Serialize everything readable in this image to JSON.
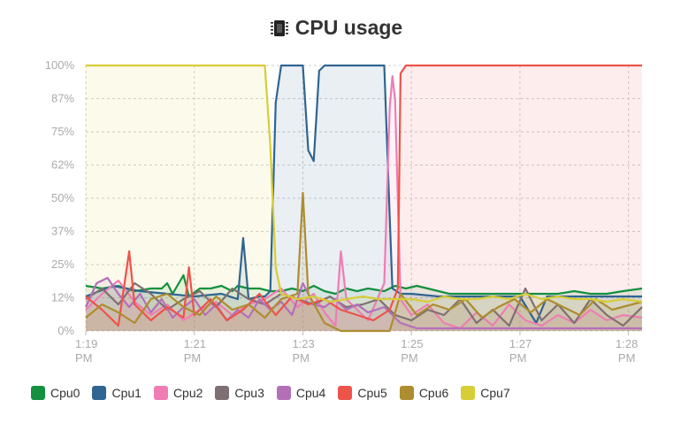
{
  "title": "CPU usage",
  "icon": "cpu-chip-icon",
  "chart_data": {
    "type": "area",
    "title": "CPU usage",
    "ylim": [
      0,
      100
    ],
    "yticks": [
      "0%",
      "12%",
      "25%",
      "37%",
      "50%",
      "62%",
      "75%",
      "87%",
      "100%"
    ],
    "xtick_labels": [
      [
        "1:19",
        "PM"
      ],
      [
        "1:21",
        "PM"
      ],
      [
        "1:23",
        "PM"
      ],
      [
        "1:25",
        "PM"
      ],
      [
        "1:27",
        "PM"
      ],
      [
        "1:28",
        "PM"
      ]
    ],
    "xticks_min": [
      0,
      2,
      4,
      6,
      8,
      10
    ],
    "xlim_min": [
      0,
      10.25
    ],
    "grid": true,
    "legend_position": "bottom",
    "series": [
      {
        "name": "Cpu0",
        "color": "#14903e",
        "points": [
          [
            0,
            17
          ],
          [
            0.3,
            16
          ],
          [
            0.6,
            17
          ],
          [
            0.9,
            15
          ],
          [
            1.2,
            16
          ],
          [
            1.4,
            16
          ],
          [
            1.5,
            18
          ],
          [
            1.6,
            14
          ],
          [
            1.8,
            21
          ],
          [
            1.9,
            13
          ],
          [
            2.1,
            16
          ],
          [
            2.3,
            16
          ],
          [
            2.5,
            17
          ],
          [
            2.7,
            15
          ],
          [
            2.8,
            17
          ],
          [
            3.0,
            16
          ],
          [
            3.2,
            16
          ],
          [
            3.4,
            15
          ],
          [
            3.6,
            15
          ],
          [
            3.8,
            16
          ],
          [
            4.0,
            15
          ],
          [
            4.2,
            17
          ],
          [
            4.4,
            15
          ],
          [
            4.6,
            14
          ],
          [
            4.8,
            16
          ],
          [
            5.0,
            15
          ],
          [
            5.2,
            16
          ],
          [
            5.5,
            15
          ],
          [
            5.7,
            17
          ],
          [
            5.9,
            16
          ],
          [
            6.1,
            17
          ],
          [
            6.3,
            16
          ],
          [
            6.5,
            15
          ],
          [
            6.7,
            14
          ],
          [
            6.9,
            14
          ],
          [
            7.2,
            14
          ],
          [
            7.5,
            14
          ],
          [
            7.8,
            14
          ],
          [
            8.1,
            14
          ],
          [
            8.4,
            14
          ],
          [
            8.7,
            14
          ],
          [
            9.0,
            15
          ],
          [
            9.3,
            14
          ],
          [
            9.6,
            14
          ],
          [
            9.9,
            15
          ],
          [
            10.25,
            16
          ]
        ]
      },
      {
        "name": "Cpu1",
        "color": "#2f6591",
        "points": [
          [
            0,
            13
          ],
          [
            0.5,
            17
          ],
          [
            1.0,
            15
          ],
          [
            1.5,
            14
          ],
          [
            2.0,
            13
          ],
          [
            2.5,
            14
          ],
          [
            2.8,
            12
          ],
          [
            2.9,
            35
          ],
          [
            3.0,
            12
          ],
          [
            3.2,
            13
          ],
          [
            3.3,
            13
          ],
          [
            3.4,
            15
          ],
          [
            3.5,
            86
          ],
          [
            3.6,
            100
          ],
          [
            4.0,
            100
          ],
          [
            4.1,
            68
          ],
          [
            4.2,
            64
          ],
          [
            4.3,
            98
          ],
          [
            4.4,
            100
          ],
          [
            5.5,
            100
          ],
          [
            5.6,
            43
          ],
          [
            5.65,
            16
          ],
          [
            5.8,
            14
          ],
          [
            6.0,
            14
          ],
          [
            6.5,
            13
          ],
          [
            7.0,
            13
          ],
          [
            7.5,
            13
          ],
          [
            8.0,
            13
          ],
          [
            8.3,
            3
          ],
          [
            8.5,
            13
          ],
          [
            9.0,
            13
          ],
          [
            9.5,
            13
          ],
          [
            10.25,
            13
          ]
        ]
      },
      {
        "name": "Cpu2",
        "color": "#ee7db3",
        "points": [
          [
            0,
            8
          ],
          [
            0.3,
            14
          ],
          [
            0.6,
            19
          ],
          [
            0.9,
            11
          ],
          [
            1.2,
            6
          ],
          [
            1.5,
            10
          ],
          [
            1.8,
            4
          ],
          [
            2.1,
            8
          ],
          [
            2.4,
            11
          ],
          [
            2.7,
            6
          ],
          [
            3.0,
            10
          ],
          [
            3.3,
            12
          ],
          [
            3.6,
            16
          ],
          [
            3.9,
            9
          ],
          [
            4.2,
            14
          ],
          [
            4.4,
            7
          ],
          [
            4.6,
            2
          ],
          [
            4.7,
            30
          ],
          [
            4.8,
            12
          ],
          [
            5.2,
            4
          ],
          [
            5.5,
            18
          ],
          [
            5.6,
            84
          ],
          [
            5.65,
            96
          ],
          [
            5.7,
            87
          ],
          [
            5.8,
            12
          ],
          [
            6.0,
            6
          ],
          [
            6.3,
            10
          ],
          [
            6.6,
            3
          ],
          [
            6.9,
            1
          ],
          [
            7.2,
            7
          ],
          [
            7.5,
            2
          ],
          [
            7.8,
            10
          ],
          [
            8.1,
            4
          ],
          [
            8.4,
            2
          ],
          [
            8.7,
            6
          ],
          [
            9.0,
            3
          ],
          [
            9.3,
            8
          ],
          [
            9.6,
            4
          ],
          [
            9.9,
            6
          ],
          [
            10.25,
            5
          ]
        ]
      },
      {
        "name": "Cpu3",
        "color": "#7e7072",
        "points": [
          [
            0,
            12
          ],
          [
            0.3,
            16
          ],
          [
            0.6,
            10
          ],
          [
            0.9,
            18
          ],
          [
            1.2,
            14
          ],
          [
            1.5,
            8
          ],
          [
            1.8,
            12
          ],
          [
            2.1,
            15
          ],
          [
            2.4,
            9
          ],
          [
            2.7,
            16
          ],
          [
            3.0,
            12
          ],
          [
            3.3,
            10
          ],
          [
            3.6,
            14
          ],
          [
            3.9,
            12
          ],
          [
            4.2,
            10
          ],
          [
            4.5,
            13
          ],
          [
            4.8,
            9
          ],
          [
            5.1,
            10
          ],
          [
            5.4,
            12
          ],
          [
            5.7,
            6
          ],
          [
            6.0,
            4
          ],
          [
            6.3,
            8
          ],
          [
            6.6,
            6
          ],
          [
            6.9,
            12
          ],
          [
            7.2,
            3
          ],
          [
            7.5,
            8
          ],
          [
            7.8,
            2
          ],
          [
            8.1,
            16
          ],
          [
            8.4,
            4
          ],
          [
            8.7,
            10
          ],
          [
            9.0,
            3
          ],
          [
            9.3,
            12
          ],
          [
            9.6,
            6
          ],
          [
            9.9,
            2
          ],
          [
            10.25,
            9
          ]
        ]
      },
      {
        "name": "Cpu4",
        "color": "#b46fb9",
        "points": [
          [
            0,
            9
          ],
          [
            0.2,
            18
          ],
          [
            0.4,
            20
          ],
          [
            0.6,
            14
          ],
          [
            0.8,
            9
          ],
          [
            1.0,
            14
          ],
          [
            1.2,
            7
          ],
          [
            1.4,
            12
          ],
          [
            1.6,
            5
          ],
          [
            1.8,
            9
          ],
          [
            2.0,
            12
          ],
          [
            2.2,
            6
          ],
          [
            2.4,
            10
          ],
          [
            2.6,
            4
          ],
          [
            2.8,
            8
          ],
          [
            3.0,
            5
          ],
          [
            3.2,
            12
          ],
          [
            3.4,
            8
          ],
          [
            3.6,
            11
          ],
          [
            3.8,
            6
          ],
          [
            4.0,
            18
          ],
          [
            4.2,
            10
          ],
          [
            4.4,
            9
          ],
          [
            4.6,
            12
          ],
          [
            4.8,
            8
          ],
          [
            5.0,
            10
          ],
          [
            5.2,
            7
          ],
          [
            5.5,
            9
          ],
          [
            5.8,
            3
          ],
          [
            6.1,
            1
          ],
          [
            6.5,
            1
          ],
          [
            7.0,
            1
          ],
          [
            7.5,
            1
          ],
          [
            8.0,
            1
          ],
          [
            8.5,
            1
          ],
          [
            9.0,
            1
          ],
          [
            9.5,
            1
          ],
          [
            10.25,
            1
          ]
        ]
      },
      {
        "name": "Cpu5",
        "color": "#ee534a",
        "points": [
          [
            0,
            13
          ],
          [
            0.3,
            8
          ],
          [
            0.6,
            2
          ],
          [
            0.8,
            30
          ],
          [
            0.9,
            10
          ],
          [
            1.2,
            4
          ],
          [
            1.5,
            9
          ],
          [
            1.8,
            5
          ],
          [
            1.9,
            24
          ],
          [
            2.0,
            6
          ],
          [
            2.3,
            12
          ],
          [
            2.6,
            4
          ],
          [
            2.9,
            8
          ],
          [
            3.2,
            14
          ],
          [
            3.5,
            6
          ],
          [
            3.8,
            13
          ],
          [
            4.1,
            10
          ],
          [
            4.4,
            12
          ],
          [
            4.7,
            8
          ],
          [
            5.0,
            6
          ],
          [
            5.3,
            4
          ],
          [
            5.6,
            8
          ],
          [
            5.75,
            16
          ],
          [
            5.8,
            97
          ],
          [
            5.9,
            100
          ],
          [
            6.5,
            100
          ],
          [
            7.5,
            100
          ],
          [
            8.5,
            100
          ],
          [
            9.5,
            100
          ],
          [
            10.25,
            100
          ]
        ]
      },
      {
        "name": "Cpu6",
        "color": "#ad8d2f",
        "points": [
          [
            0,
            5
          ],
          [
            0.3,
            10
          ],
          [
            0.6,
            7
          ],
          [
            0.9,
            3
          ],
          [
            1.2,
            12
          ],
          [
            1.5,
            14
          ],
          [
            1.8,
            9
          ],
          [
            2.1,
            6
          ],
          [
            2.4,
            13
          ],
          [
            2.7,
            8
          ],
          [
            3.0,
            10
          ],
          [
            3.3,
            5
          ],
          [
            3.6,
            12
          ],
          [
            3.9,
            14
          ],
          [
            4.0,
            52
          ],
          [
            4.1,
            14
          ],
          [
            4.4,
            3
          ],
          [
            4.7,
            0
          ],
          [
            5.0,
            0
          ],
          [
            5.3,
            0
          ],
          [
            5.6,
            0
          ],
          [
            5.8,
            14
          ],
          [
            6.1,
            6
          ],
          [
            6.4,
            10
          ],
          [
            6.7,
            8
          ],
          [
            7.0,
            12
          ],
          [
            7.3,
            5
          ],
          [
            7.6,
            9
          ],
          [
            7.9,
            12
          ],
          [
            8.2,
            7
          ],
          [
            8.5,
            12
          ],
          [
            8.8,
            9
          ],
          [
            9.1,
            6
          ],
          [
            9.4,
            12
          ],
          [
            9.7,
            8
          ],
          [
            10.25,
            11
          ]
        ]
      },
      {
        "name": "Cpu7",
        "color": "#d7cd36",
        "points": [
          [
            0,
            100
          ],
          [
            0.5,
            100
          ],
          [
            1.0,
            100
          ],
          [
            1.5,
            100
          ],
          [
            2.0,
            100
          ],
          [
            2.5,
            100
          ],
          [
            3.0,
            100
          ],
          [
            3.3,
            100
          ],
          [
            3.4,
            70
          ],
          [
            3.5,
            24
          ],
          [
            3.6,
            14
          ],
          [
            3.9,
            12
          ],
          [
            4.2,
            13
          ],
          [
            4.5,
            11
          ],
          [
            4.8,
            12
          ],
          [
            5.1,
            13
          ],
          [
            5.4,
            12
          ],
          [
            5.7,
            12
          ],
          [
            6.0,
            12
          ],
          [
            6.3,
            11
          ],
          [
            6.6,
            13
          ],
          [
            6.9,
            12
          ],
          [
            7.2,
            12
          ],
          [
            7.5,
            13
          ],
          [
            7.8,
            12
          ],
          [
            8.1,
            14
          ],
          [
            8.4,
            12
          ],
          [
            8.7,
            13
          ],
          [
            9.0,
            12
          ],
          [
            9.3,
            12
          ],
          [
            9.6,
            11
          ],
          [
            9.9,
            12
          ],
          [
            10.25,
            11
          ]
        ]
      }
    ]
  }
}
